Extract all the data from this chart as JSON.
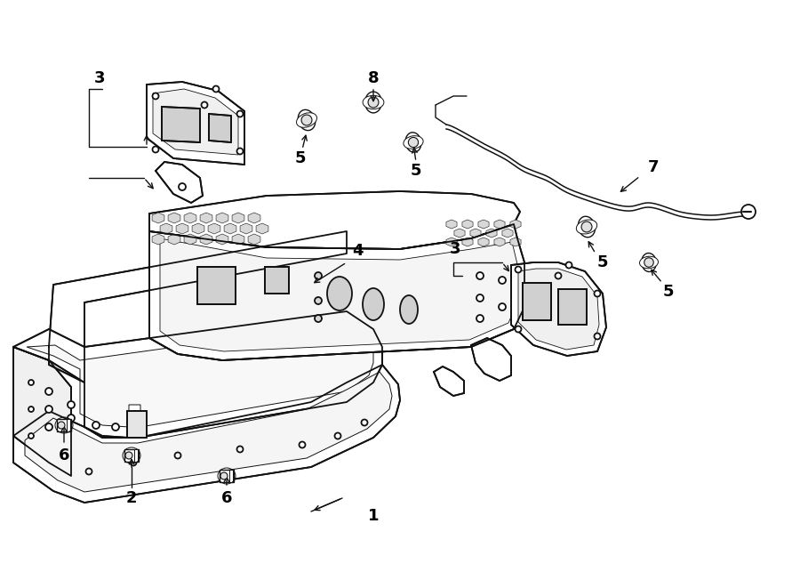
{
  "bg_color": "#ffffff",
  "lc": "#111111",
  "lw": 1.3,
  "fig_w": 9.0,
  "fig_h": 6.61,
  "dpi": 100,
  "xlim": [
    0,
    900
  ],
  "ylim": [
    0,
    661
  ]
}
